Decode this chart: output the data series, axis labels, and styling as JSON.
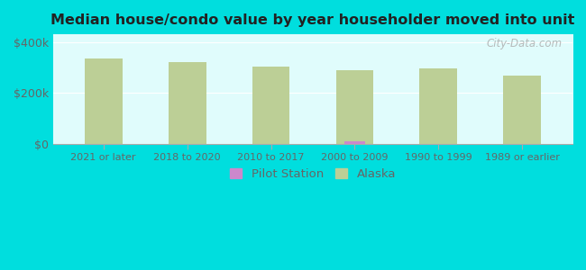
{
  "title": "Median house/condo value by year householder moved into unit",
  "categories": [
    "2021 or later",
    "2018 to 2020",
    "2010 to 2017",
    "2000 to 2009",
    "1990 to 1999",
    "1989 or earlier"
  ],
  "alaska_values": [
    335000,
    320000,
    305000,
    290000,
    298000,
    268000
  ],
  "pilot_values": [
    0,
    0,
    0,
    10000,
    0,
    0
  ],
  "alaska_color": "#bccf96",
  "pilot_color": "#cc88cc",
  "background_outer": "#00dede",
  "title_color": "#222222",
  "axis_label_color": "#666666",
  "ytick_labels": [
    "$0",
    "$200k",
    "$400k"
  ],
  "ytick_values": [
    0,
    200000,
    400000
  ],
  "ylim": [
    0,
    430000
  ],
  "bar_width": 0.45,
  "watermark": "City-Data.com",
  "legend_pilot": "Pilot Station",
  "legend_alaska": "Alaska"
}
